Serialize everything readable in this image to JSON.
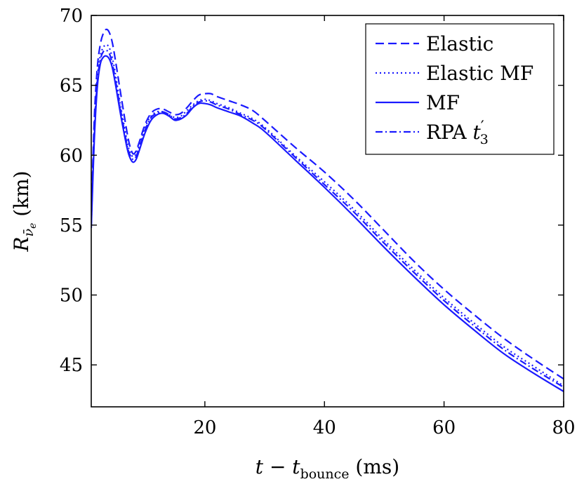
{
  "chart_data": {
    "type": "line",
    "title": "",
    "xlabel": "t − t_bounce (ms)",
    "xlabel_parts": {
      "main": "t − t",
      "sub": "bounce",
      "unit": " (ms)"
    },
    "ylabel": "R_ν̄e (km)",
    "ylabel_parts": {
      "main": "R",
      "sub": "ν̄",
      "subsub": "e",
      "unit": " (km)"
    },
    "xlim": [
      1,
      80
    ],
    "ylim": [
      42,
      70
    ],
    "xticks": [
      20,
      40,
      60,
      80
    ],
    "yticks": [
      45,
      50,
      55,
      60,
      65,
      70
    ],
    "grid": false,
    "legend_position": "top-right",
    "line_color": "#1a1aff",
    "series": [
      {
        "name": "Elastic",
        "dash": "dashed",
        "x": [
          1,
          1.5,
          2,
          2.5,
          3,
          3.5,
          4,
          4.5,
          5,
          6,
          7,
          7.5,
          8,
          8.5,
          9,
          10,
          11,
          12,
          13,
          14,
          15,
          16,
          17,
          18,
          19,
          20,
          21,
          22,
          24,
          26,
          28,
          30,
          35,
          40,
          45,
          50,
          55,
          60,
          65,
          70,
          75,
          80
        ],
        "y": [
          55.5,
          62.5,
          66.2,
          67.9,
          68.7,
          69.0,
          68.8,
          68.1,
          66.9,
          64.2,
          61.6,
          60.6,
          60.1,
          60.3,
          60.9,
          62.2,
          63.0,
          63.3,
          63.3,
          63.1,
          62.9,
          63.0,
          63.4,
          63.9,
          64.3,
          64.4,
          64.4,
          64.2,
          63.9,
          63.6,
          63.2,
          62.5,
          60.6,
          58.8,
          56.8,
          54.6,
          52.4,
          50.4,
          48.6,
          46.9,
          45.4,
          44.0
        ]
      },
      {
        "name": "Elastic MF",
        "dash": "dotted",
        "x": [
          1,
          1.5,
          2,
          2.5,
          3,
          3.5,
          4,
          4.5,
          5,
          6,
          7,
          7.5,
          8,
          8.5,
          9,
          10,
          11,
          12,
          13,
          14,
          15,
          16,
          17,
          18,
          19,
          20,
          21,
          22,
          24,
          26,
          28,
          30,
          35,
          40,
          45,
          50,
          55,
          60,
          65,
          70,
          75,
          80
        ],
        "y": [
          55.2,
          61.8,
          65.5,
          67.1,
          67.7,
          67.9,
          67.7,
          67.0,
          65.9,
          63.3,
          61.0,
          60.2,
          59.9,
          60.1,
          60.7,
          62.0,
          62.8,
          63.1,
          63.1,
          62.9,
          62.7,
          62.8,
          63.2,
          63.6,
          63.9,
          64.0,
          63.9,
          63.7,
          63.4,
          63.0,
          62.6,
          62.0,
          60.0,
          58.1,
          56.1,
          53.9,
          51.8,
          49.8,
          48.0,
          46.3,
          44.9,
          43.5
        ]
      },
      {
        "name": "MF",
        "dash": "solid",
        "x": [
          1,
          1.5,
          2,
          2.5,
          3,
          3.5,
          4,
          4.5,
          5,
          6,
          7,
          7.5,
          8,
          8.5,
          9,
          10,
          11,
          12,
          13,
          14,
          15,
          16,
          17,
          18,
          19,
          20,
          21,
          22,
          24,
          26,
          28,
          30,
          35,
          40,
          45,
          50,
          55,
          60,
          65,
          70,
          75,
          80
        ],
        "y": [
          54.8,
          61.0,
          64.8,
          66.5,
          67.0,
          67.1,
          66.9,
          66.3,
          65.2,
          62.7,
          60.5,
          59.8,
          59.5,
          59.7,
          60.3,
          61.6,
          62.5,
          62.9,
          63.0,
          62.8,
          62.5,
          62.6,
          62.9,
          63.4,
          63.7,
          63.7,
          63.6,
          63.4,
          63.1,
          62.8,
          62.3,
          61.7,
          59.7,
          57.7,
          55.6,
          53.4,
          51.3,
          49.3,
          47.5,
          45.8,
          44.4,
          43.1
        ]
      },
      {
        "name": "RPA t′3",
        "name_parts": {
          "main": "RPA ",
          "var": "t",
          "prime": "′",
          "sub": "3"
        },
        "dash": "dashdot",
        "x": [
          1,
          1.5,
          2,
          2.5,
          3,
          3.5,
          4,
          4.5,
          5,
          6,
          7,
          7.5,
          8,
          8.5,
          9,
          10,
          11,
          12,
          13,
          14,
          15,
          16,
          17,
          18,
          19,
          20,
          21,
          22,
          24,
          26,
          28,
          30,
          35,
          40,
          45,
          50,
          55,
          60,
          65,
          70,
          75,
          80
        ],
        "y": [
          55.0,
          61.5,
          65.2,
          66.8,
          67.4,
          67.5,
          67.3,
          66.6,
          65.5,
          63.0,
          60.7,
          60.0,
          59.7,
          59.9,
          60.5,
          61.8,
          62.7,
          63.0,
          63.1,
          62.9,
          62.6,
          62.7,
          63.0,
          63.5,
          63.8,
          63.9,
          63.8,
          63.6,
          63.3,
          62.9,
          62.5,
          61.9,
          59.9,
          57.9,
          55.9,
          53.7,
          51.6,
          49.6,
          47.8,
          46.1,
          44.7,
          43.4
        ]
      }
    ]
  }
}
